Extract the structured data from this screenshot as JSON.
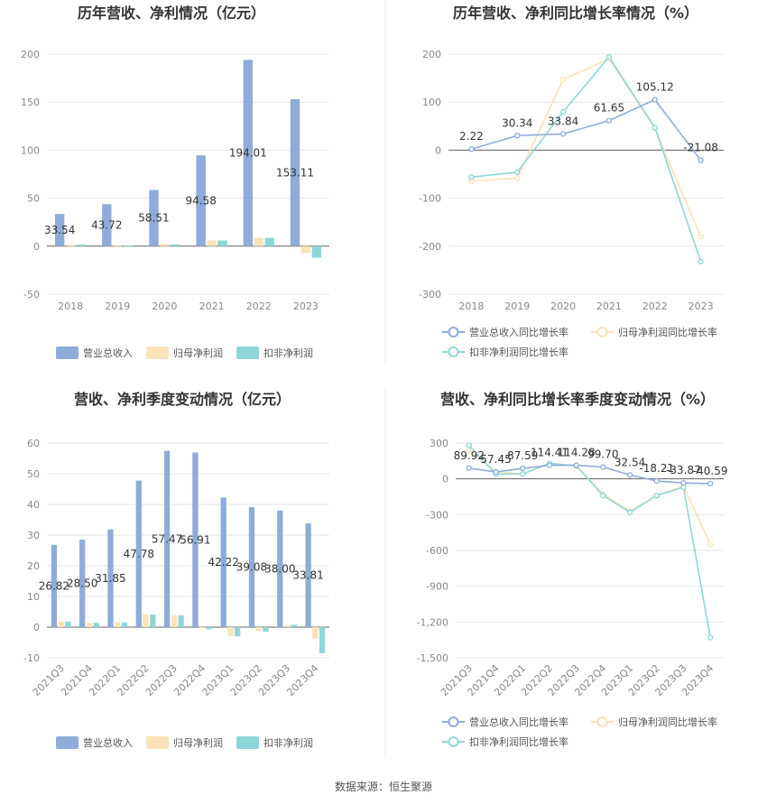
{
  "source": "数据来源：恒生聚源",
  "colors": {
    "revenue": "#8eacd9",
    "net_profit": "#fbe2b8",
    "deducted_profit": "#8fd6d8"
  },
  "chart_data": [
    {
      "type": "bar",
      "title": "历年营收、净利情况（亿元）",
      "categories": [
        "2018",
        "2019",
        "2020",
        "2021",
        "2022",
        "2023"
      ],
      "ylim": [
        -50,
        200
      ],
      "yticks": [
        "-50",
        "0",
        "50",
        "100",
        "150",
        "200"
      ],
      "series": [
        {
          "name": "营业总收入",
          "values": [
            33.54,
            43.72,
            58.51,
            94.58,
            194.01,
            153.11
          ]
        },
        {
          "name": "归母净利润",
          "values": [
            1.3,
            1.0,
            1.9,
            6.0,
            8.8,
            -7
          ]
        },
        {
          "name": "扣非净利润",
          "values": [
            1.6,
            0.8,
            1.7,
            5.9,
            8.6,
            -12
          ]
        }
      ],
      "data_labels": [
        "33.54",
        "43.72",
        "58.51",
        "94.58",
        "194.01",
        "153.11"
      ]
    },
    {
      "type": "line",
      "title": "历年营收、净利同比增长率情况（%）",
      "categories": [
        "2018",
        "2019",
        "2020",
        "2021",
        "2022",
        "2023"
      ],
      "ylim": [
        -300,
        200
      ],
      "yticks": [
        "-300",
        "-200",
        "-100",
        "0",
        "100",
        "200"
      ],
      "series": [
        {
          "name": "营业总收入同比增长率",
          "values": [
            2.22,
            30.34,
            33.84,
            61.65,
            105.12,
            -21.08
          ]
        },
        {
          "name": "归母净利润同比增长率",
          "values": [
            -65,
            -58,
            147,
            190,
            45,
            -180
          ]
        },
        {
          "name": "扣非净利润同比增长率",
          "values": [
            -56,
            -46,
            80,
            194,
            47,
            -232
          ]
        }
      ],
      "data_labels": [
        "2.22",
        "30.34",
        "33.84",
        "61.65",
        "105.12",
        "-21.08"
      ]
    },
    {
      "type": "bar",
      "title": "营收、净利季度变动情况（亿元）",
      "categories": [
        "2021Q3",
        "2021Q4",
        "2022Q1",
        "2022Q2",
        "2022Q3",
        "2022Q4",
        "2023Q1",
        "2023Q2",
        "2023Q3",
        "2023Q4"
      ],
      "ylim": [
        -10,
        60
      ],
      "yticks": [
        "-10",
        "0",
        "10",
        "20",
        "30",
        "40",
        "50",
        "60"
      ],
      "series": [
        {
          "name": "营业总收入",
          "values": [
            26.82,
            28.5,
            31.85,
            47.78,
            57.47,
            56.91,
            42.22,
            39.08,
            38.0,
            33.81
          ]
        },
        {
          "name": "归母净利润",
          "values": [
            1.8,
            1.4,
            1.6,
            4.2,
            3.8,
            -0.4,
            -2.8,
            -1.3,
            0.6,
            -3.8
          ]
        },
        {
          "name": "扣非净利润",
          "values": [
            1.8,
            1.4,
            1.5,
            4.1,
            3.8,
            -0.7,
            -3.0,
            -1.5,
            0.8,
            -8.5
          ]
        }
      ],
      "data_labels": [
        "26.82",
        "28.50",
        "31.85",
        "47.78",
        "57.47",
        "56.91",
        "42.22",
        "39.08",
        "38.00",
        "33.81"
      ]
    },
    {
      "type": "line",
      "title": "营收、净利同比增长率季度变动情况（%）",
      "categories": [
        "2021Q3",
        "2021Q4",
        "2022Q1",
        "2022Q2",
        "2022Q3",
        "2022Q4",
        "2023Q1",
        "2023Q2",
        "2023Q3",
        "2023Q4"
      ],
      "ylim": [
        -1500,
        300
      ],
      "yticks": [
        "-1,500",
        "-1,200",
        "-900",
        "-600",
        "-300",
        "0",
        "300"
      ],
      "series": [
        {
          "name": "营业总收入同比增长率",
          "values": [
            89.92,
            57.45,
            87.59,
            114.41,
            114.28,
            99.7,
            32.54,
            -18.21,
            -33.87,
            -40.59
          ]
        },
        {
          "name": "归母净利润同比增长率",
          "values": [
            240,
            60,
            40,
            130,
            110,
            -130,
            -270,
            -140,
            -60,
            -550
          ]
        },
        {
          "name": "扣非净利润同比增长率",
          "values": [
            280,
            40,
            40,
            130,
            110,
            -140,
            -280,
            -140,
            -70,
            -1330
          ]
        }
      ],
      "data_labels": [
        "89.92",
        "57.45",
        "87.59",
        "114.41",
        "114.28",
        "99.70",
        "32.54",
        "-18.21",
        "-33.87",
        "-40.59"
      ]
    }
  ]
}
